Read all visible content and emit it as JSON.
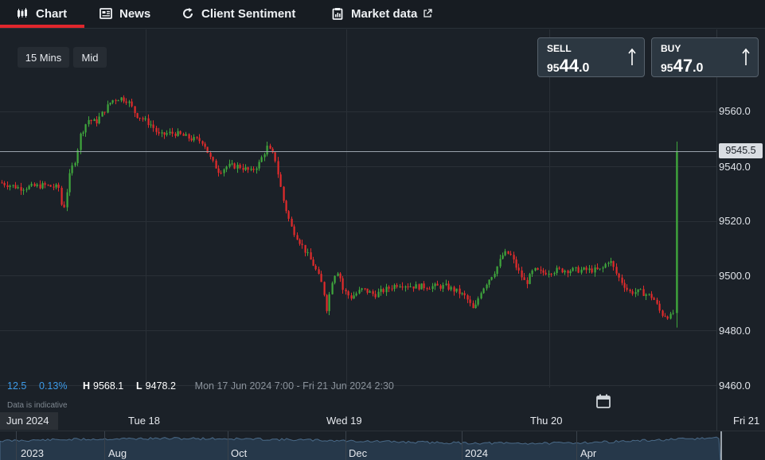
{
  "tabs": [
    {
      "label": "Chart",
      "icon": "candlestick-icon",
      "active": true
    },
    {
      "label": "News",
      "icon": "news-icon"
    },
    {
      "label": "Client Sentiment",
      "icon": "refresh-icon"
    },
    {
      "label": "Market data",
      "icon": "clipboard-icon",
      "external_icon": "external-link-icon"
    }
  ],
  "controls": {
    "timeframe": "15 Mins",
    "price_type": "Mid"
  },
  "sell": {
    "label": "SELL",
    "price_small": "95",
    "price_big": "44",
    "price_tail": ".0"
  },
  "buy": {
    "label": "BUY",
    "price_small": "95",
    "price_big": "47",
    "price_tail": ".0"
  },
  "current_price_tag": "9545.5",
  "stats": {
    "change": "12.5",
    "change_pct": "0.13%",
    "high_label": "H",
    "high": "9568.1",
    "low_label": "L",
    "low": "9478.2",
    "range": "Mon 17 Jun 2024 7:00 - Fri 21 Jun 2024 2:30"
  },
  "data_note": "Data is indicative",
  "y_axis_labels": [
    "9560.0",
    "9540.0",
    "9520.0",
    "9500.0",
    "9480.0",
    "9460.0"
  ],
  "x_axis_labels": [
    "Jun 2024",
    "Tue 18",
    "Wed 19",
    "Thu 20",
    "Fri 21"
  ],
  "navigator_labels": [
    "2023",
    "Aug",
    "Oct",
    "Dec",
    "2024",
    "Apr"
  ],
  "colors": {
    "up": "#3fa63c",
    "down": "#e12b2b",
    "accent": "#e0262c",
    "positive_text": "#3d9be9"
  },
  "chart_data": {
    "type": "candlestick",
    "title": "",
    "xlabel": "",
    "ylabel": "",
    "ylim": [
      9455,
      9575
    ],
    "x_range": [
      "Mon 17 Jun 2024 7:00",
      "Fri 21 Jun 2024 2:30"
    ],
    "grid": true,
    "current_price": 9545.5,
    "path_points": [
      [
        0,
        9534
      ],
      [
        25,
        9532
      ],
      [
        55,
        9533
      ],
      [
        75,
        9532
      ],
      [
        78,
        9522
      ],
      [
        88,
        9538
      ],
      [
        95,
        9543
      ],
      [
        100,
        9551
      ],
      [
        110,
        9557
      ],
      [
        120,
        9556
      ],
      [
        130,
        9560
      ],
      [
        140,
        9564
      ],
      [
        150,
        9565
      ],
      [
        160,
        9564
      ],
      [
        170,
        9559
      ],
      [
        180,
        9557
      ],
      [
        190,
        9555
      ],
      [
        200,
        9551
      ],
      [
        210,
        9552
      ],
      [
        220,
        9552
      ],
      [
        230,
        9551
      ],
      [
        240,
        9550
      ],
      [
        255,
        9549
      ],
      [
        265,
        9542
      ],
      [
        275,
        9538
      ],
      [
        285,
        9540
      ],
      [
        300,
        9540
      ],
      [
        315,
        9538
      ],
      [
        325,
        9541
      ],
      [
        335,
        9547
      ],
      [
        345,
        9543
      ],
      [
        355,
        9528
      ],
      [
        365,
        9518
      ],
      [
        375,
        9513
      ],
      [
        385,
        9508
      ],
      [
        395,
        9503
      ],
      [
        405,
        9496
      ],
      [
        410,
        9488
      ],
      [
        418,
        9500
      ],
      [
        425,
        9502
      ],
      [
        430,
        9495
      ],
      [
        440,
        9492
      ],
      [
        455,
        9495
      ],
      [
        470,
        9493
      ],
      [
        485,
        9495
      ],
      [
        500,
        9497
      ],
      [
        520,
        9496
      ],
      [
        540,
        9496
      ],
      [
        560,
        9496
      ],
      [
        575,
        9494
      ],
      [
        585,
        9492
      ],
      [
        595,
        9487
      ],
      [
        603,
        9494
      ],
      [
        612,
        9498
      ],
      [
        622,
        9502
      ],
      [
        632,
        9508
      ],
      [
        640,
        9508
      ],
      [
        650,
        9502
      ],
      [
        660,
        9497
      ],
      [
        670,
        9502
      ],
      [
        680,
        9501
      ],
      [
        700,
        9502
      ],
      [
        720,
        9502
      ],
      [
        740,
        9502
      ],
      [
        755,
        9502
      ],
      [
        765,
        9506
      ],
      [
        775,
        9500
      ],
      [
        790,
        9494
      ],
      [
        805,
        9494
      ],
      [
        820,
        9492
      ],
      [
        830,
        9486
      ],
      [
        842,
        9485
      ],
      [
        849,
        9488
      ],
      [
        851,
        9546
      ]
    ]
  }
}
